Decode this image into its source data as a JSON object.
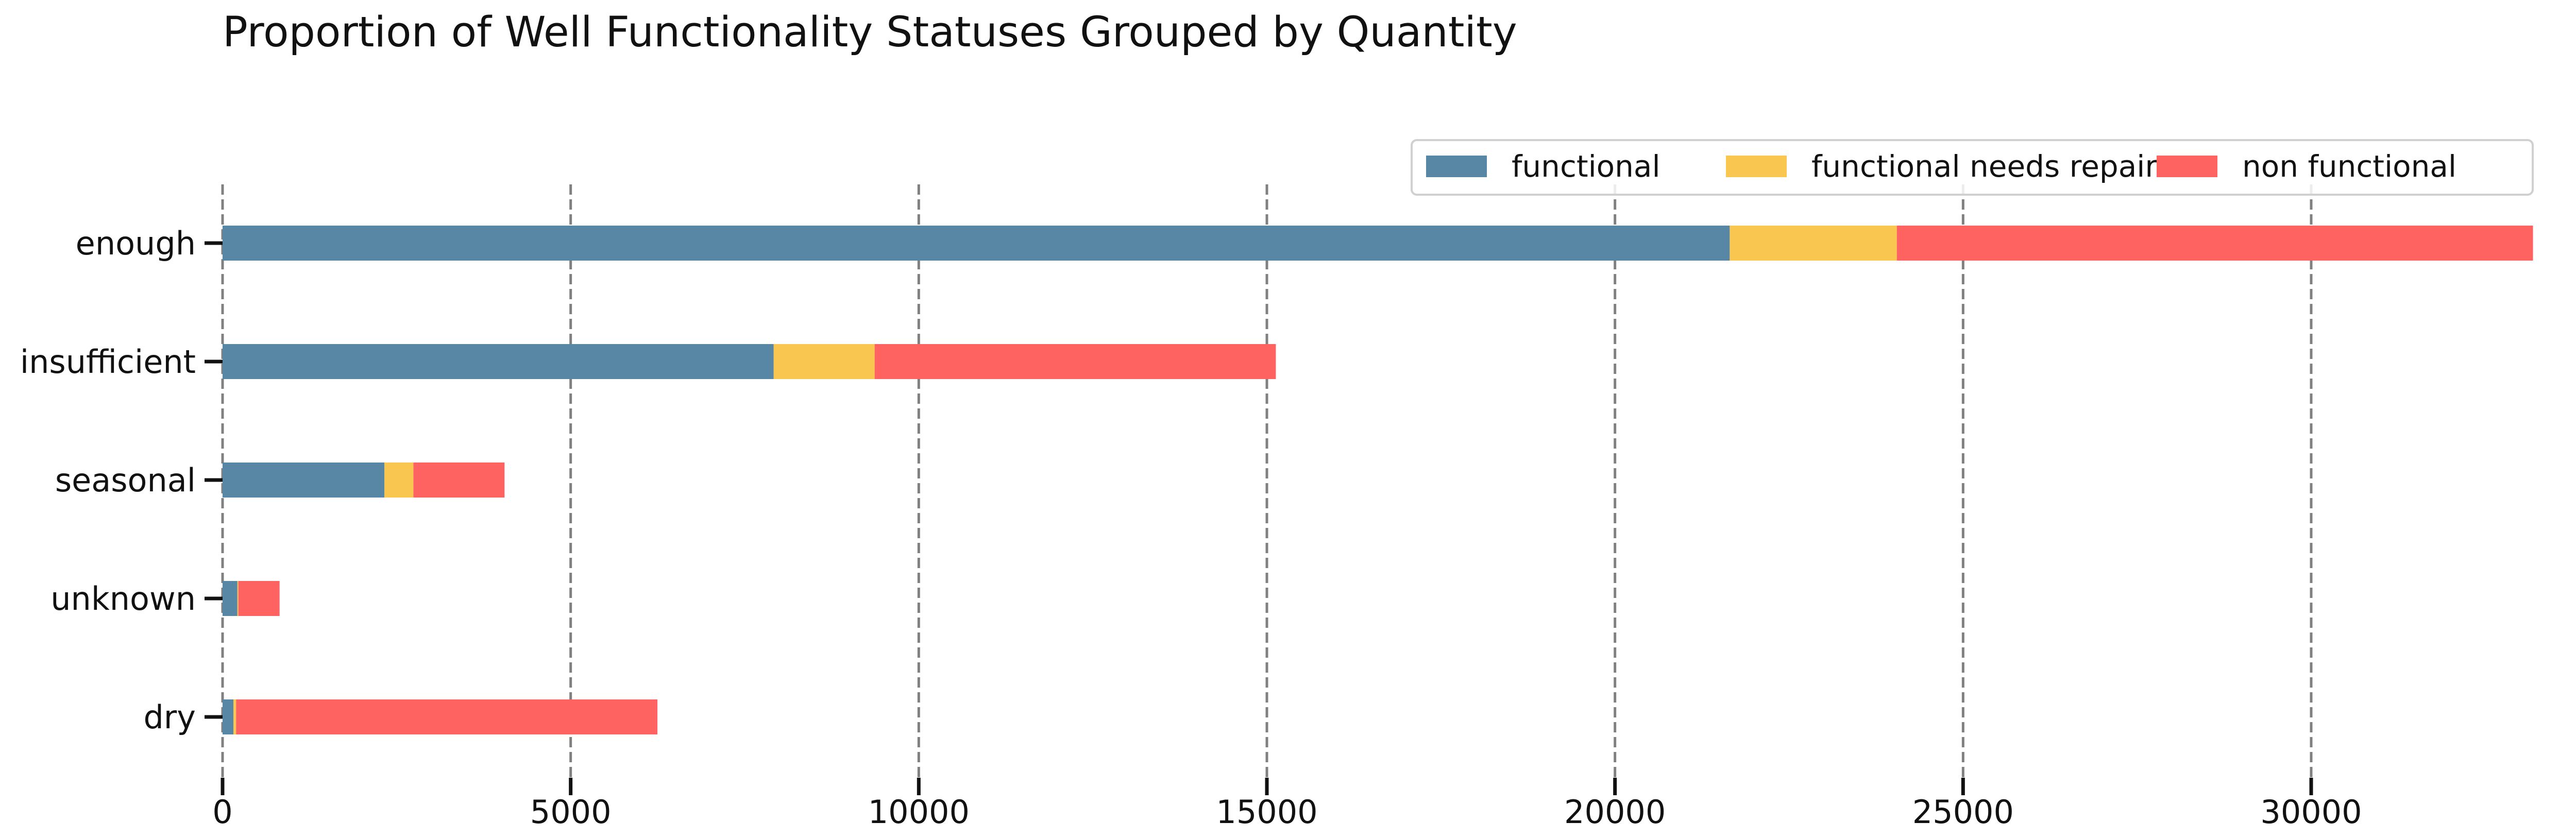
{
  "chart_data": {
    "type": "bar",
    "orientation": "horizontal",
    "stacked": true,
    "title": "Proportion of Well Functionality Statuses Grouped by Quantity",
    "xlabel": "",
    "ylabel": "",
    "categories": [
      "enough",
      "insufficient",
      "seasonal",
      "unknown",
      "dry"
    ],
    "series": [
      {
        "name": "functional",
        "color": "#5886a5",
        "values": [
          21648,
          7916,
          2325,
          213,
          157
        ]
      },
      {
        "name": "functional needs repair",
        "color": "#f9c74f",
        "values": [
          2400,
          1450,
          416,
          14,
          37
        ]
      },
      {
        "name": "non functional",
        "color": "#ff6361",
        "values": [
          9138,
          5763,
          1309,
          592,
          6052
        ]
      }
    ],
    "xlim": [
      0,
      35000
    ],
    "xticks": [
      0,
      5000,
      10000,
      15000,
      20000,
      25000,
      30000
    ],
    "xtick_labels": [
      "0",
      "5000",
      "10000",
      "15000",
      "20000",
      "25000",
      "30000"
    ],
    "grid": {
      "x": true,
      "style": "dashed",
      "color": "#808080"
    },
    "legend": {
      "position": "top-right",
      "columns": 3
    }
  }
}
